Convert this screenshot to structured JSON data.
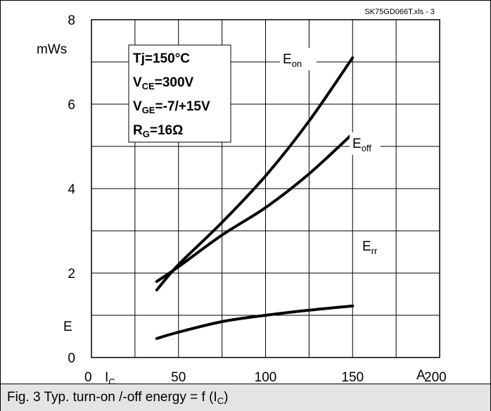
{
  "file_id": "SK75GD066T.xls - 3",
  "caption": {
    "main": "Fig. 3 Typ. turn-on /-off energy = f (I",
    "sub": "C",
    "end": ")"
  },
  "conditions": [
    {
      "main": "Tj=150",
      "sub": "",
      "rest": "°C"
    },
    {
      "main": "V",
      "sub": "CE",
      "rest": "=300V"
    },
    {
      "main": "V",
      "sub": "GE",
      "rest": "=-7/+15V"
    },
    {
      "main": "R",
      "sub": "G",
      "rest": "=16Ω"
    }
  ],
  "colors": {
    "line": "#000000",
    "caption_bg": "#e4e4e4",
    "background": "#ffffff"
  },
  "chart_data": {
    "type": "line",
    "title": "",
    "xlabel": {
      "main": "I",
      "sub": "C"
    },
    "ylabel": "E",
    "x_unit": "A",
    "y_unit": "mWs",
    "xlim": [
      0,
      200
    ],
    "ylim": [
      0,
      8
    ],
    "x_ticks": [
      0,
      50,
      100,
      150,
      200
    ],
    "y_ticks": [
      0,
      2,
      4,
      6,
      8
    ],
    "grid": true,
    "grid_x_step": 25,
    "grid_y_step": 1,
    "series": [
      {
        "name": "E",
        "name_sub": "on",
        "x": [
          37.5,
          50,
          75,
          100,
          125,
          150
        ],
        "y": [
          1.6,
          2.2,
          3.2,
          4.3,
          5.6,
          7.1
        ]
      },
      {
        "name": "E",
        "name_sub": "off",
        "x": [
          37.5,
          50,
          75,
          100,
          125,
          150
        ],
        "y": [
          1.8,
          2.15,
          2.9,
          3.55,
          4.35,
          5.3
        ]
      },
      {
        "name": "E",
        "name_sub": "rr",
        "x": [
          37.5,
          50,
          75,
          100,
          125,
          150
        ],
        "y": [
          0.45,
          0.6,
          0.85,
          1.0,
          1.12,
          1.22
        ]
      }
    ]
  }
}
